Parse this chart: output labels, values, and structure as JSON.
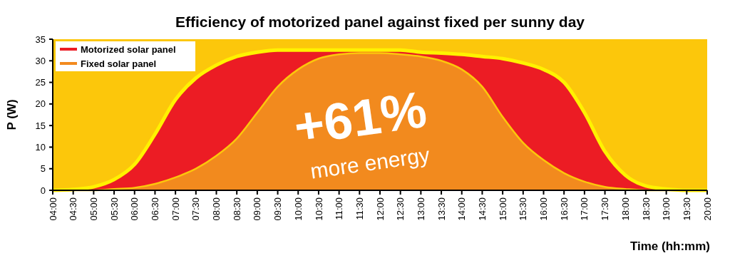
{
  "chart_data": {
    "type": "area",
    "title": "Efficiency of motorized panel against fixed per sunny day",
    "xlabel": "Time (hh:mm)",
    "ylabel": "P (W)",
    "xlim": [
      4,
      20
    ],
    "ylim": [
      0,
      35
    ],
    "yticks": [
      0,
      5,
      10,
      15,
      20,
      25,
      30,
      35
    ],
    "xticks": [
      {
        "value": 4,
        "label": "04:00"
      },
      {
        "value": 4.5,
        "label": "04:30"
      },
      {
        "value": 5,
        "label": "05:00"
      },
      {
        "value": 5.5,
        "label": "05:30"
      },
      {
        "value": 6,
        "label": "06:00"
      },
      {
        "value": 6.5,
        "label": "06:30"
      },
      {
        "value": 7,
        "label": "07:00"
      },
      {
        "value": 7.5,
        "label": "07:30"
      },
      {
        "value": 8,
        "label": "08:00"
      },
      {
        "value": 8.5,
        "label": "08:30"
      },
      {
        "value": 9,
        "label": "09:00"
      },
      {
        "value": 9.5,
        "label": "09:30"
      },
      {
        "value": 10,
        "label": "10:00"
      },
      {
        "value": 10.5,
        "label": "10:30"
      },
      {
        "value": 11,
        "label": "11:00"
      },
      {
        "value": 11.5,
        "label": "11:30"
      },
      {
        "value": 12,
        "label": "12:00"
      },
      {
        "value": 12.5,
        "label": "12:30"
      },
      {
        "value": 13,
        "label": "13:00"
      },
      {
        "value": 13.5,
        "label": "13:30"
      },
      {
        "value": 14,
        "label": "14:00"
      },
      {
        "value": 14.5,
        "label": "14:30"
      },
      {
        "value": 15,
        "label": "15:00"
      },
      {
        "value": 15.5,
        "label": "15:30"
      },
      {
        "value": 16,
        "label": "16:00"
      },
      {
        "value": 16.5,
        "label": "16:30"
      },
      {
        "value": 17,
        "label": "17:00"
      },
      {
        "value": 17.5,
        "label": "17:30"
      },
      {
        "value": 18,
        "label": "18:00"
      },
      {
        "value": 18.5,
        "label": "18:30"
      },
      {
        "value": 19,
        "label": "19:00"
      },
      {
        "value": 19.5,
        "label": "19:30"
      },
      {
        "value": 20,
        "label": "20:00"
      }
    ],
    "x": [
      4,
      4.5,
      5,
      5.5,
      6,
      6.5,
      7,
      7.5,
      8,
      8.5,
      9,
      9.5,
      10,
      10.5,
      11,
      11.5,
      12,
      12.5,
      13,
      13.5,
      14,
      14.5,
      15,
      15.5,
      16,
      16.5,
      17,
      17.5,
      18,
      18.5,
      19,
      19.5,
      20
    ],
    "series": [
      {
        "name": "Motorized solar panel",
        "color": "#ec1c24",
        "values": [
          0,
          0.2,
          0.8,
          2.5,
          6,
          13,
          21,
          26,
          29,
          31,
          32,
          32.5,
          32.5,
          32.5,
          32.5,
          32.5,
          32.5,
          32.5,
          32,
          31.8,
          31.5,
          31,
          30.5,
          29.5,
          28,
          25,
          18,
          9,
          3.5,
          1,
          0.3,
          0,
          0
        ]
      },
      {
        "name": "Fixed solar panel",
        "color": "#f28a1e",
        "values": [
          0,
          0,
          0,
          0.3,
          0.6,
          1.5,
          3,
          5,
          8,
          12,
          18,
          24,
          28,
          30.5,
          31.5,
          31.8,
          31.8,
          31.5,
          31,
          30,
          28,
          24,
          17,
          11,
          7,
          4,
          2,
          0.8,
          0.3,
          0,
          0,
          0,
          0
        ]
      }
    ],
    "legend": "top left",
    "grid": false,
    "annotations": [
      "+61%",
      "more energy"
    ]
  }
}
